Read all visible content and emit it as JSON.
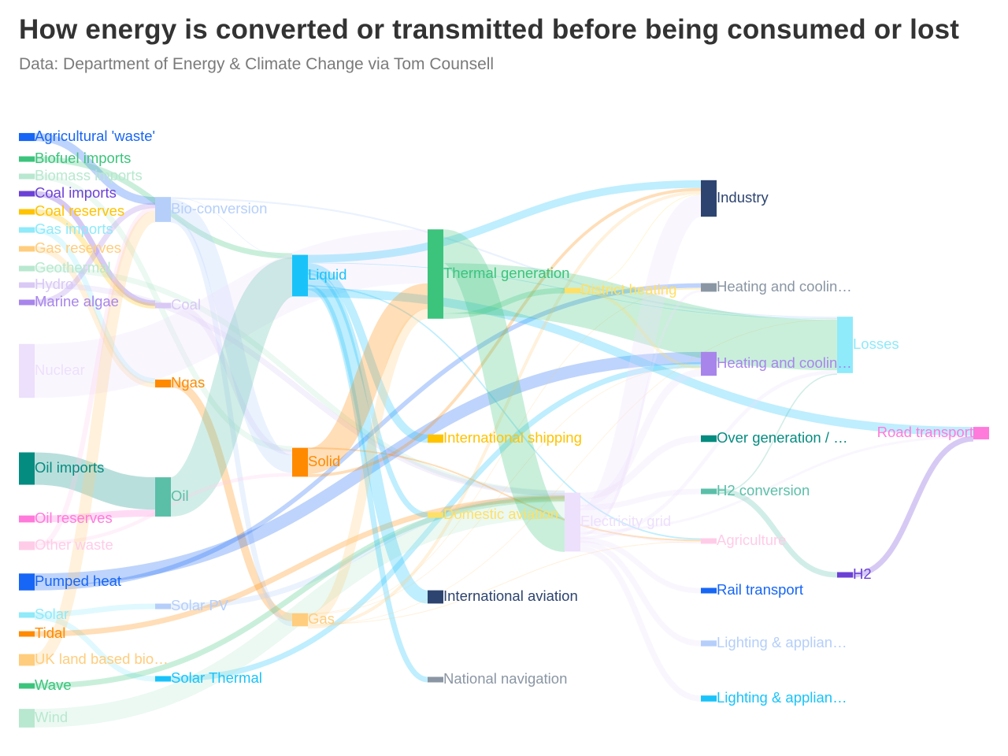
{
  "header": {
    "title": "How energy is converted or transmitted before being consumed or lost",
    "subtitle": "Data: Department of Energy & Climate Change via Tom Counsell"
  },
  "chart_data": {
    "type": "sankey",
    "nodes": [
      {
        "name": "Agricultural 'waste'",
        "label": "Agricultural 'waste'",
        "color": "#1766F5",
        "level": 0
      },
      {
        "name": "Biofuel imports",
        "label": "Biofuel imports",
        "color": "#3CC47C",
        "level": 0
      },
      {
        "name": "Biomass imports",
        "label": "Biomass imports",
        "color": "#B8E8CF",
        "level": 0
      },
      {
        "name": "Coal imports",
        "label": "Coal imports",
        "color": "#6B40D6",
        "level": 0
      },
      {
        "name": "Coal reserves",
        "label": "Coal reserves",
        "color": "#FFC300",
        "level": 0
      },
      {
        "name": "Gas imports",
        "label": "Gas imports",
        "color": "#8FEAFA",
        "level": 0
      },
      {
        "name": "Gas reserves",
        "label": "Gas reserves",
        "color": "#FFCD7D",
        "level": 0
      },
      {
        "name": "Geothermal",
        "label": "Geothermal",
        "color": "#B8E8CF",
        "level": 0
      },
      {
        "name": "Hydro",
        "label": "Hydro",
        "color": "#D9C9F5",
        "level": 0
      },
      {
        "name": "Marine algae",
        "label": "Marine algae",
        "color": "#A885EB",
        "level": 0
      },
      {
        "name": "Nuclear",
        "label": "Nuclear",
        "color": "#EDE0FC",
        "level": 0
      },
      {
        "name": "Oil imports",
        "label": "Oil imports",
        "color": "#058C81",
        "level": 0
      },
      {
        "name": "Oil reserves",
        "label": "Oil reserves",
        "color": "#FF7ADB",
        "level": 0
      },
      {
        "name": "Other waste",
        "label": "Other waste",
        "color": "#FFCCE8",
        "level": 0
      },
      {
        "name": "Pumped heat",
        "label": "Pumped heat",
        "color": "#1766F5",
        "level": 0
      },
      {
        "name": "Solar",
        "label": "Solar",
        "color": "#8FEAFA",
        "level": 0
      },
      {
        "name": "Tidal",
        "label": "Tidal",
        "color": "#FF8A00",
        "level": 0
      },
      {
        "name": "UK land based bioenergy",
        "label": "UK land based bio…",
        "color": "#FFCD7D",
        "level": 0
      },
      {
        "name": "Wave",
        "label": "Wave",
        "color": "#3CC47C",
        "level": 0
      },
      {
        "name": "Wind",
        "label": "Wind",
        "color": "#B8E8CF",
        "level": 0
      },
      {
        "name": "Bio-conversion",
        "label": "Bio-conversion",
        "color": "#B5CFFA",
        "level": 1
      },
      {
        "name": "Coal",
        "label": "Coal",
        "color": "#D9C9F5",
        "level": 1
      },
      {
        "name": "Ngas",
        "label": "Ngas",
        "color": "#FF8A00",
        "level": 1
      },
      {
        "name": "Oil",
        "label": "Oil",
        "color": "#5BBFA8",
        "level": 1
      },
      {
        "name": "Solar PV",
        "label": "Solar PV",
        "color": "#B5CFFA",
        "level": 1
      },
      {
        "name": "Solar Thermal",
        "label": "Solar Thermal",
        "color": "#19C3FA",
        "level": 1
      },
      {
        "name": "Liquid",
        "label": "Liquid",
        "color": "#19C3FA",
        "level": 2
      },
      {
        "name": "Solid",
        "label": "Solid",
        "color": "#FF8A00",
        "level": 2
      },
      {
        "name": "Gas",
        "label": "Gas",
        "color": "#FFCD7D",
        "level": 2
      },
      {
        "name": "Thermal generation",
        "label": "Thermal generation",
        "color": "#3CC47C",
        "level": 3
      },
      {
        "name": "International shipping",
        "label": "International shipping",
        "color": "#FFC300",
        "level": 3
      },
      {
        "name": "Domestic aviation",
        "label": "Domestic aviation",
        "color": "#FFE066",
        "level": 3
      },
      {
        "name": "International aviation",
        "label": "International aviation",
        "color": "#2D4470",
        "level": 3
      },
      {
        "name": "National navigation",
        "label": "National navigation",
        "color": "#8A96A3",
        "level": 3
      },
      {
        "name": "District heating",
        "label": "District heating",
        "color": "#FFE066",
        "level": 4
      },
      {
        "name": "Electricity grid",
        "label": "Electricity grid",
        "color": "#EDE0FC",
        "level": 4
      },
      {
        "name": "Industry",
        "label": "Industry",
        "color": "#2D4470",
        "level": 5
      },
      {
        "name": "Heating and cooling - commercial",
        "label": "Heating and coolin…",
        "color": "#8A96A3",
        "level": 5
      },
      {
        "name": "Heating and cooling - homes",
        "label": "Heating and coolin…",
        "color": "#A885EB",
        "level": 5
      },
      {
        "name": "Over generation / exports",
        "label": "Over generation / …",
        "color": "#058C81",
        "level": 5
      },
      {
        "name": "H2 conversion",
        "label": "H2 conversion",
        "color": "#5BBFA8",
        "level": 5
      },
      {
        "name": "Agriculture",
        "label": "Agriculture",
        "color": "#FFCCE8",
        "level": 5
      },
      {
        "name": "Rail transport",
        "label": "Rail transport",
        "color": "#1766F5",
        "level": 5
      },
      {
        "name": "Lighting & appliances - commercial",
        "label": "Lighting & applian…",
        "color": "#B5CFFA",
        "level": 5
      },
      {
        "name": "Lighting & appliances - homes",
        "label": "Lighting & applian…",
        "color": "#19C3FA",
        "level": 5
      },
      {
        "name": "Losses",
        "label": "Losses",
        "color": "#8FEAFA",
        "level": 6
      },
      {
        "name": "H2",
        "label": "H2",
        "color": "#6B40D6",
        "level": 6
      },
      {
        "name": "Road transport",
        "label": "Road transport",
        "color": "#FF7ADB",
        "level": 7
      }
    ],
    "links": [
      {
        "source": "Agricultural 'waste'",
        "target": "Bio-conversion",
        "value": 124.7
      },
      {
        "source": "Biofuel imports",
        "target": "Liquid",
        "value": 35
      },
      {
        "source": "Biomass imports",
        "target": "Solid",
        "value": 35
      },
      {
        "source": "Coal imports",
        "target": "Coal",
        "value": 11.6
      },
      {
        "source": "Coal reserves",
        "target": "Coal",
        "value": 63.9
      },
      {
        "source": "Coal",
        "target": "Solid",
        "value": 75.6
      },
      {
        "source": "Gas imports",
        "target": "Ngas",
        "value": 40.7
      },
      {
        "source": "Gas reserves",
        "target": "Ngas",
        "value": 82.2
      },
      {
        "source": "Ngas",
        "target": "Gas",
        "value": 122.9
      },
      {
        "source": "Bio-conversion",
        "target": "Liquid",
        "value": 0.6
      },
      {
        "source": "Bio-conversion",
        "target": "Losses",
        "value": 26.9
      },
      {
        "source": "Bio-conversion",
        "target": "Solid",
        "value": 280.3
      },
      {
        "source": "Bio-conversion",
        "target": "Gas",
        "value": 81.1
      },
      {
        "source": "Geothermal",
        "target": "Electricity grid",
        "value": 7.0
      },
      {
        "source": "Hydro",
        "target": "Electricity grid",
        "value": 6.9
      },
      {
        "source": "Marine algae",
        "target": "Bio-conversion",
        "value": 4.4
      },
      {
        "source": "Nuclear",
        "target": "Thermal generation",
        "value": 839.9
      },
      {
        "source": "Oil imports",
        "target": "Oil",
        "value": 504.3
      },
      {
        "source": "Oil reserves",
        "target": "Oil",
        "value": 107.7
      },
      {
        "source": "Oil",
        "target": "Liquid",
        "value": 611.9
      },
      {
        "source": "Other waste",
        "target": "Solid",
        "value": 56.6
      },
      {
        "source": "Other waste",
        "target": "Bio-conversion",
        "value": 77.8
      },
      {
        "source": "Pumped heat",
        "target": "Heating and cooling - homes",
        "value": 193.0
      },
      {
        "source": "Pumped heat",
        "target": "Heating and cooling - commercial",
        "value": 70.7
      },
      {
        "source": "Solar",
        "target": "Solar PV",
        "value": 59.9
      },
      {
        "source": "Solar",
        "target": "Solar Thermal",
        "value": 19.3
      },
      {
        "source": "Solar PV",
        "target": "Electricity grid",
        "value": 59.9
      },
      {
        "source": "Solar Thermal",
        "target": "Heating and cooling - homes",
        "value": 19.3
      },
      {
        "source": "Tidal",
        "target": "Electricity grid",
        "value": 9.5
      },
      {
        "source": "UK land based bioenergy",
        "target": "Bio-conversion",
        "value": 182.0
      },
      {
        "source": "Wave",
        "target": "Electricity grid",
        "value": 19.0
      },
      {
        "source": "Wind",
        "target": "Electricity grid",
        "value": 289.4
      },
      {
        "source": "Liquid",
        "target": "Industry",
        "value": 121.1
      },
      {
        "source": "Liquid",
        "target": "Losses",
        "value": 0.1
      },
      {
        "source": "Liquid",
        "target": "International shipping",
        "value": 128.7
      },
      {
        "source": "Liquid",
        "target": "Domestic aviation",
        "value": 14.5
      },
      {
        "source": "Liquid",
        "target": "International aviation",
        "value": 206.1
      },
      {
        "source": "Liquid",
        "target": "Agriculture",
        "value": 3.64
      },
      {
        "source": "Liquid",
        "target": "National navigation",
        "value": 33.2
      },
      {
        "source": "Liquid",
        "target": "Road transport",
        "value": 135.8
      },
      {
        "source": "Solid",
        "target": "Agriculture",
        "value": 4.0
      },
      {
        "source": "Solid",
        "target": "Thermal generation",
        "value": 400.1
      },
      {
        "source": "Solid",
        "target": "Industry",
        "value": 46.5
      },
      {
        "source": "Gas",
        "target": "Heating and cooling - commercial",
        "value": 0.01
      },
      {
        "source": "Gas",
        "target": "Heating and cooling - homes",
        "value": 0.01
      },
      {
        "source": "Gas",
        "target": "Thermal generation",
        "value": 151.9
      },
      {
        "source": "Gas",
        "target": "Agriculture",
        "value": 2.096
      },
      {
        "source": "Gas",
        "target": "Losses",
        "value": 2.2
      },
      {
        "source": "Gas",
        "target": "Industry",
        "value": 48.6
      },
      {
        "source": "Thermal generation",
        "target": "Electricity grid",
        "value": 525.5
      },
      {
        "source": "Thermal generation",
        "target": "Losses",
        "value": 787.1
      },
      {
        "source": "Thermal generation",
        "target": "District heating",
        "value": 79.3
      },
      {
        "source": "District heating",
        "target": "Industry",
        "value": 10.6
      },
      {
        "source": "District heating",
        "target": "Heating and cooling - commercial",
        "value": 22.5
      },
      {
        "source": "District heating",
        "target": "Heating and cooling - homes",
        "value": 46.2
      },
      {
        "source": "Electricity grid",
        "target": "Over generation / exports",
        "value": 104.5
      },
      {
        "source": "Electricity grid",
        "target": "Heating and cooling - homes",
        "value": 113.7
      },
      {
        "source": "Electricity grid",
        "target": "H2 conversion",
        "value": 27.1
      },
      {
        "source": "Electricity grid",
        "target": "Industry",
        "value": 342.2
      },
      {
        "source": "Electricity grid",
        "target": "Road transport",
        "value": 37.8
      },
      {
        "source": "Electricity grid",
        "target": "Agriculture",
        "value": 4.4
      },
      {
        "source": "Electricity grid",
        "target": "Heating and cooling - commercial",
        "value": 40.1
      },
      {
        "source": "Electricity grid",
        "target": "Losses",
        "value": 56.7
      },
      {
        "source": "Electricity grid",
        "target": "Rail transport",
        "value": 7.0
      },
      {
        "source": "Electricity grid",
        "target": "Lighting & appliances - commercial",
        "value": 90.0
      },
      {
        "source": "Electricity grid",
        "target": "Lighting & appliances - homes",
        "value": 93.5
      },
      {
        "source": "H2 conversion",
        "target": "H2",
        "value": 20.9
      },
      {
        "source": "H2 conversion",
        "target": "Losses",
        "value": 6.2
      },
      {
        "source": "H2",
        "target": "Road transport",
        "value": 20.9
      }
    ]
  }
}
